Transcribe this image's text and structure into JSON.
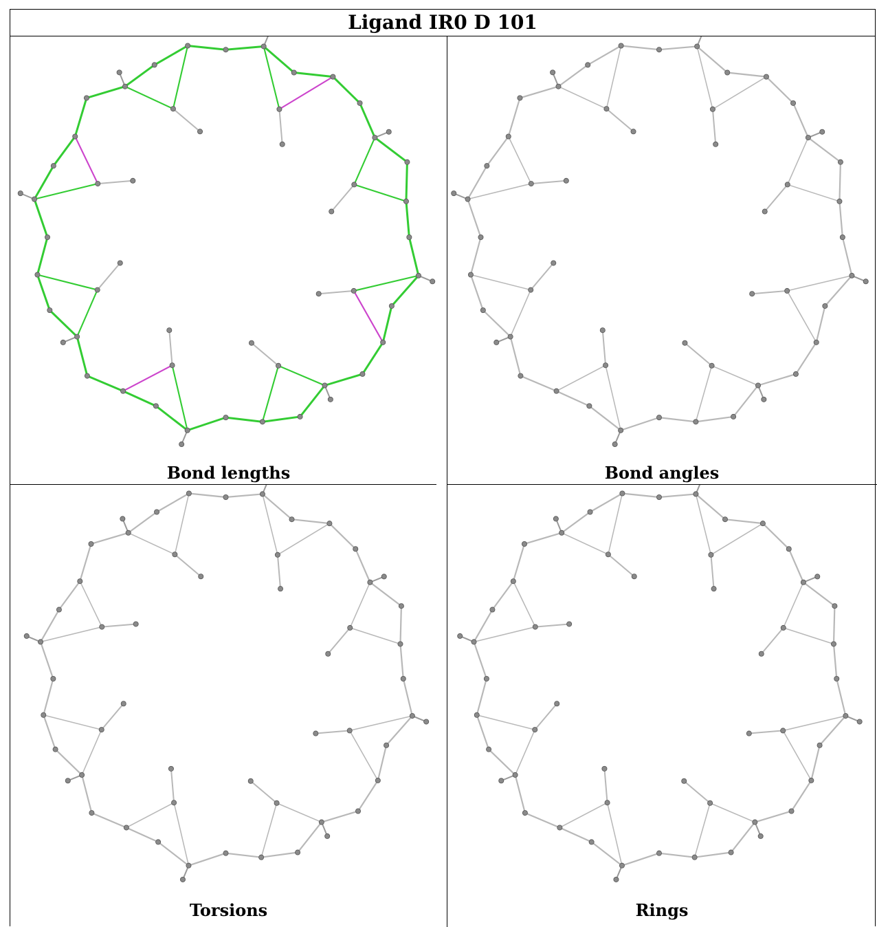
{
  "title": "Ligand IR0 D 101",
  "panels": [
    {
      "caption": "Bond lengths",
      "style": "colored"
    },
    {
      "caption": "Bond angles",
      "style": "gray"
    },
    {
      "caption": "Torsions",
      "style": "gray"
    },
    {
      "caption": "Rings",
      "style": "gray"
    }
  ],
  "colors": {
    "ok_bond": "#33cc33",
    "outlier_bond": "#cc44cc",
    "gray_bond": "#b8b8b8",
    "atom": "#8a8a8a"
  }
}
